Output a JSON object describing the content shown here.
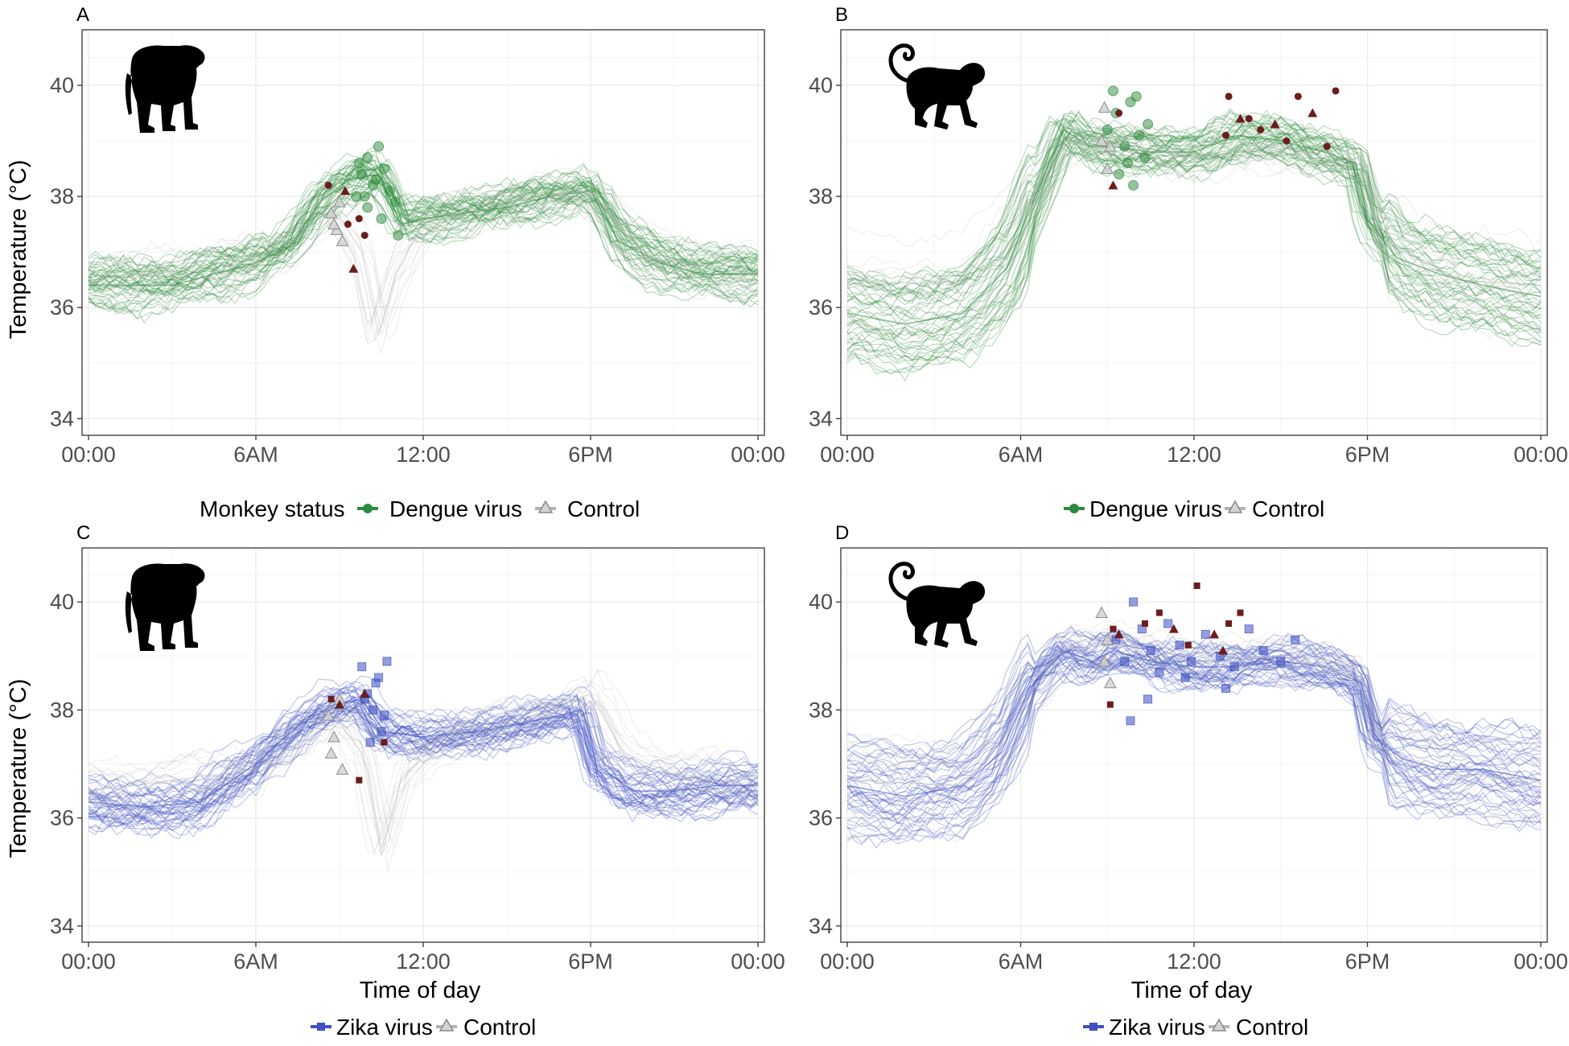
{
  "figure": {
    "time_ticks": [
      "00:00",
      "6AM",
      "12:00",
      "6PM",
      "00:00"
    ],
    "temp_ticks": [
      "34",
      "36",
      "38",
      "40"
    ]
  },
  "legends": {
    "top": {
      "title": "Monkey status",
      "items": [
        "Dengue virus",
        "Control"
      ]
    },
    "top_right": {
      "items": [
        "Dengue virus",
        "Control"
      ]
    },
    "bottom_left": {
      "items": [
        "Zika virus",
        "Control"
      ]
    },
    "bottom_right": {
      "items": [
        "Zika virus",
        "Control"
      ]
    }
  },
  "colors": {
    "dengue": "#2e8b3c",
    "zika": "#3f51c2",
    "control": "#a8a8a8",
    "marker_dark": "#6b1d1d",
    "grid": "#ebebeb",
    "axis_text": "#4d4d4d"
  },
  "chart_data": [
    {
      "panel": "A",
      "type": "line",
      "animal_icon": "monkey-silhouette-icon",
      "xlabel": "",
      "ylabel": "Temperature (°C)",
      "xlim": [
        0,
        24
      ],
      "ylim": [
        33.7,
        41
      ],
      "x_ticks": [
        0,
        6,
        12,
        18,
        24
      ],
      "y_ticks": [
        34,
        36,
        38,
        40
      ],
      "grid": true,
      "series": [
        {
          "name": "Dengue virus",
          "color": "#2e8b3c",
          "x": [
            0,
            3,
            6,
            7.2,
            8.3,
            9.3,
            10.4,
            11.2,
            12,
            13.5,
            15,
            16.5,
            18,
            19,
            20.5,
            22,
            24
          ],
          "y": [
            36.4,
            36.4,
            36.8,
            37.1,
            37.9,
            38.3,
            38.4,
            37.5,
            37.6,
            37.7,
            37.8,
            38.0,
            38.1,
            37.2,
            36.8,
            36.6,
            36.6
          ]
        },
        {
          "name": "Control",
          "color": "#a8a8a8",
          "x": [
            0,
            6,
            7.5,
            8.8,
            9.8,
            10.4,
            11,
            12,
            14,
            16,
            18,
            20,
            24
          ],
          "y": [
            36.5,
            36.8,
            37.3,
            37.8,
            37.0,
            35.5,
            36.6,
            37.5,
            37.8,
            38.0,
            38.1,
            36.9,
            36.6
          ]
        }
      ],
      "points": {
        "infected": {
          "x": [
            9.6,
            9.8,
            10.0,
            10.2,
            10.4,
            10.6,
            10.8,
            10.5,
            10.0,
            9.7,
            11.0,
            11.1,
            10.3,
            9.9
          ],
          "y": [
            38.0,
            38.4,
            38.7,
            38.2,
            38.9,
            38.5,
            38.1,
            37.6,
            37.8,
            38.6,
            37.9,
            37.3,
            38.3,
            38.0
          ]
        },
        "control": {
          "x": [
            8.7,
            8.9,
            9.0,
            9.1,
            8.8
          ],
          "y": [
            37.7,
            37.4,
            37.9,
            37.2,
            37.5
          ]
        },
        "dark": {
          "x": [
            8.6,
            9.2,
            9.7,
            9.9,
            9.5,
            9.3
          ],
          "y": [
            38.2,
            38.1,
            37.6,
            37.3,
            36.7,
            37.5
          ]
        }
      }
    },
    {
      "panel": "B",
      "type": "line",
      "animal_icon": "monkey-tail-icon",
      "xlabel": "",
      "ylabel": "",
      "xlim": [
        0,
        24
      ],
      "ylim": [
        33.7,
        41
      ],
      "x_ticks": [
        0,
        6,
        12,
        18,
        24
      ],
      "y_ticks": [
        34,
        36,
        38,
        40
      ],
      "grid": true,
      "series": [
        {
          "name": "Dengue virus",
          "color": "#2e8b3c",
          "x": [
            0,
            2,
            4,
            5.5,
            6.5,
            7.5,
            8.4,
            9.2,
            10.5,
            12,
            13.5,
            15,
            16.5,
            17.6,
            18,
            19,
            20.5,
            22,
            24
          ],
          "y": [
            35.9,
            35.7,
            35.9,
            36.7,
            38.0,
            39.2,
            38.9,
            38.9,
            38.8,
            38.8,
            39.1,
            39.0,
            38.8,
            38.6,
            37.6,
            36.9,
            36.6,
            36.4,
            36.2
          ]
        },
        {
          "name": "Control",
          "color": "#a8a8a8",
          "x": [
            0,
            4,
            6,
            7.5,
            9,
            12,
            15,
            17.8,
            18.5,
            21,
            24
          ],
          "y": [
            36.5,
            36.4,
            37.7,
            39.0,
            39.0,
            38.7,
            38.9,
            38.6,
            37.2,
            36.5,
            36.4
          ]
        }
      ],
      "points": {
        "infected": {
          "x": [
            9.0,
            9.3,
            9.6,
            9.8,
            10.1,
            10.4,
            9.4,
            9.7,
            10.0,
            10.3,
            9.2,
            9.9
          ],
          "y": [
            39.2,
            39.5,
            38.9,
            39.7,
            39.1,
            39.3,
            38.4,
            38.6,
            39.8,
            38.7,
            39.9,
            38.2
          ]
        },
        "control": {
          "x": [
            8.9,
            9.1,
            9.0,
            8.8
          ],
          "y": [
            39.6,
            38.9,
            38.5,
            39.0
          ]
        },
        "dark": {
          "x": [
            13.2,
            13.6,
            13.9,
            14.3,
            14.8,
            15.2,
            15.6,
            16.1,
            16.6,
            16.9,
            9.2,
            9.4,
            13.1
          ],
          "y": [
            39.8,
            39.4,
            39.4,
            39.2,
            39.3,
            39.0,
            39.8,
            39.5,
            38.9,
            39.9,
            38.2,
            39.5,
            39.1
          ]
        }
      }
    },
    {
      "panel": "C",
      "type": "line",
      "animal_icon": "monkey-silhouette-icon",
      "xlabel": "Time of day",
      "ylabel": "Temperature (°C)",
      "xlim": [
        0,
        24
      ],
      "ylim": [
        33.7,
        41
      ],
      "x_ticks": [
        0,
        6,
        12,
        18,
        24
      ],
      "y_ticks": [
        34,
        36,
        38,
        40
      ],
      "grid": true,
      "series": [
        {
          "name": "Zika virus",
          "color": "#3f51c2",
          "x": [
            0,
            2,
            4,
            6,
            7.5,
            8.8,
            9.8,
            10.6,
            12,
            14,
            16,
            17.7,
            18.2,
            19.5,
            21,
            22.5,
            24
          ],
          "y": [
            36.3,
            36.2,
            36.3,
            37.0,
            37.7,
            38.1,
            38.2,
            37.6,
            37.5,
            37.6,
            37.8,
            38.0,
            37.0,
            36.5,
            36.5,
            36.6,
            36.6
          ]
        },
        {
          "name": "Control",
          "color": "#a8a8a8",
          "x": [
            0,
            6,
            7.5,
            8.8,
            9.8,
            10.5,
            11.2,
            12.5,
            14,
            16,
            18,
            19.2,
            21,
            24
          ],
          "y": [
            36.5,
            36.9,
            37.4,
            37.9,
            37.2,
            35.3,
            36.7,
            37.4,
            37.7,
            37.9,
            38.3,
            37.2,
            36.8,
            36.6
          ]
        }
      ],
      "points": {
        "infected": {
          "x": [
            9.8,
            10.0,
            10.2,
            10.4,
            10.6,
            10.1,
            10.3,
            10.5,
            9.9,
            10.7
          ],
          "y": [
            38.8,
            38.3,
            38.0,
            38.6,
            37.9,
            37.4,
            38.5,
            37.6,
            38.2,
            38.9
          ]
        },
        "control": {
          "x": [
            8.6,
            8.8,
            9.0,
            8.7,
            9.1
          ],
          "y": [
            37.9,
            37.5,
            38.2,
            37.2,
            36.9
          ]
        },
        "dark": {
          "x": [
            8.7,
            9.0,
            9.7,
            10.6,
            9.9
          ],
          "y": [
            38.2,
            38.1,
            36.7,
            37.4,
            38.3
          ]
        }
      }
    },
    {
      "panel": "D",
      "type": "line",
      "animal_icon": "monkey-tail-icon",
      "xlabel": "Time of day",
      "ylabel": "",
      "xlim": [
        0,
        24
      ],
      "ylim": [
        33.7,
        41
      ],
      "x_ticks": [
        0,
        6,
        12,
        18,
        24
      ],
      "y_ticks": [
        34,
        36,
        38,
        40
      ],
      "grid": true,
      "series": [
        {
          "name": "Zika virus",
          "color": "#3f51c2",
          "x": [
            0,
            2,
            4,
            5.3,
            6.3,
            7.5,
            8.5,
            9.2,
            10.5,
            12,
            13.5,
            15,
            16.5,
            17.8,
            18.2,
            19.2,
            20.5,
            22,
            24
          ],
          "y": [
            36.6,
            36.4,
            36.6,
            37.2,
            38.4,
            39.1,
            38.9,
            39.1,
            38.9,
            38.8,
            38.8,
            38.9,
            38.8,
            38.5,
            37.5,
            37.1,
            36.9,
            36.9,
            36.7
          ]
        },
        {
          "name": "Control",
          "color": "#a8a8a8",
          "x": [
            0,
            4,
            6,
            7.5,
            9,
            12,
            15,
            17.8,
            18.5,
            21,
            24
          ],
          "y": [
            36.7,
            36.6,
            37.9,
            39.1,
            39.2,
            38.9,
            39.0,
            38.6,
            37.3,
            36.8,
            36.7
          ]
        }
      ],
      "points": {
        "infected": {
          "x": [
            9.3,
            9.6,
            9.9,
            10.2,
            10.5,
            10.8,
            11.1,
            11.5,
            11.9,
            12.4,
            12.9,
            13.4,
            13.9,
            14.4,
            15.0,
            15.5,
            9.8,
            10.4,
            11.7,
            13.1
          ],
          "y": [
            39.3,
            38.9,
            40.0,
            39.5,
            39.1,
            38.7,
            39.6,
            39.2,
            38.9,
            39.4,
            39.0,
            38.8,
            39.5,
            39.1,
            38.9,
            39.3,
            37.8,
            38.2,
            38.6,
            38.4
          ]
        },
        "control": {
          "x": [
            8.8,
            9.0,
            8.9,
            9.1
          ],
          "y": [
            39.8,
            39.3,
            38.9,
            38.5
          ]
        },
        "dark": {
          "x": [
            9.2,
            9.4,
            10.3,
            10.8,
            11.3,
            11.8,
            12.1,
            12.7,
            13.2,
            13.6,
            13.0,
            9.1
          ],
          "y": [
            39.5,
            39.4,
            39.6,
            39.8,
            39.5,
            39.2,
            40.3,
            39.4,
            39.6,
            39.8,
            39.1,
            38.1
          ]
        }
      }
    }
  ]
}
